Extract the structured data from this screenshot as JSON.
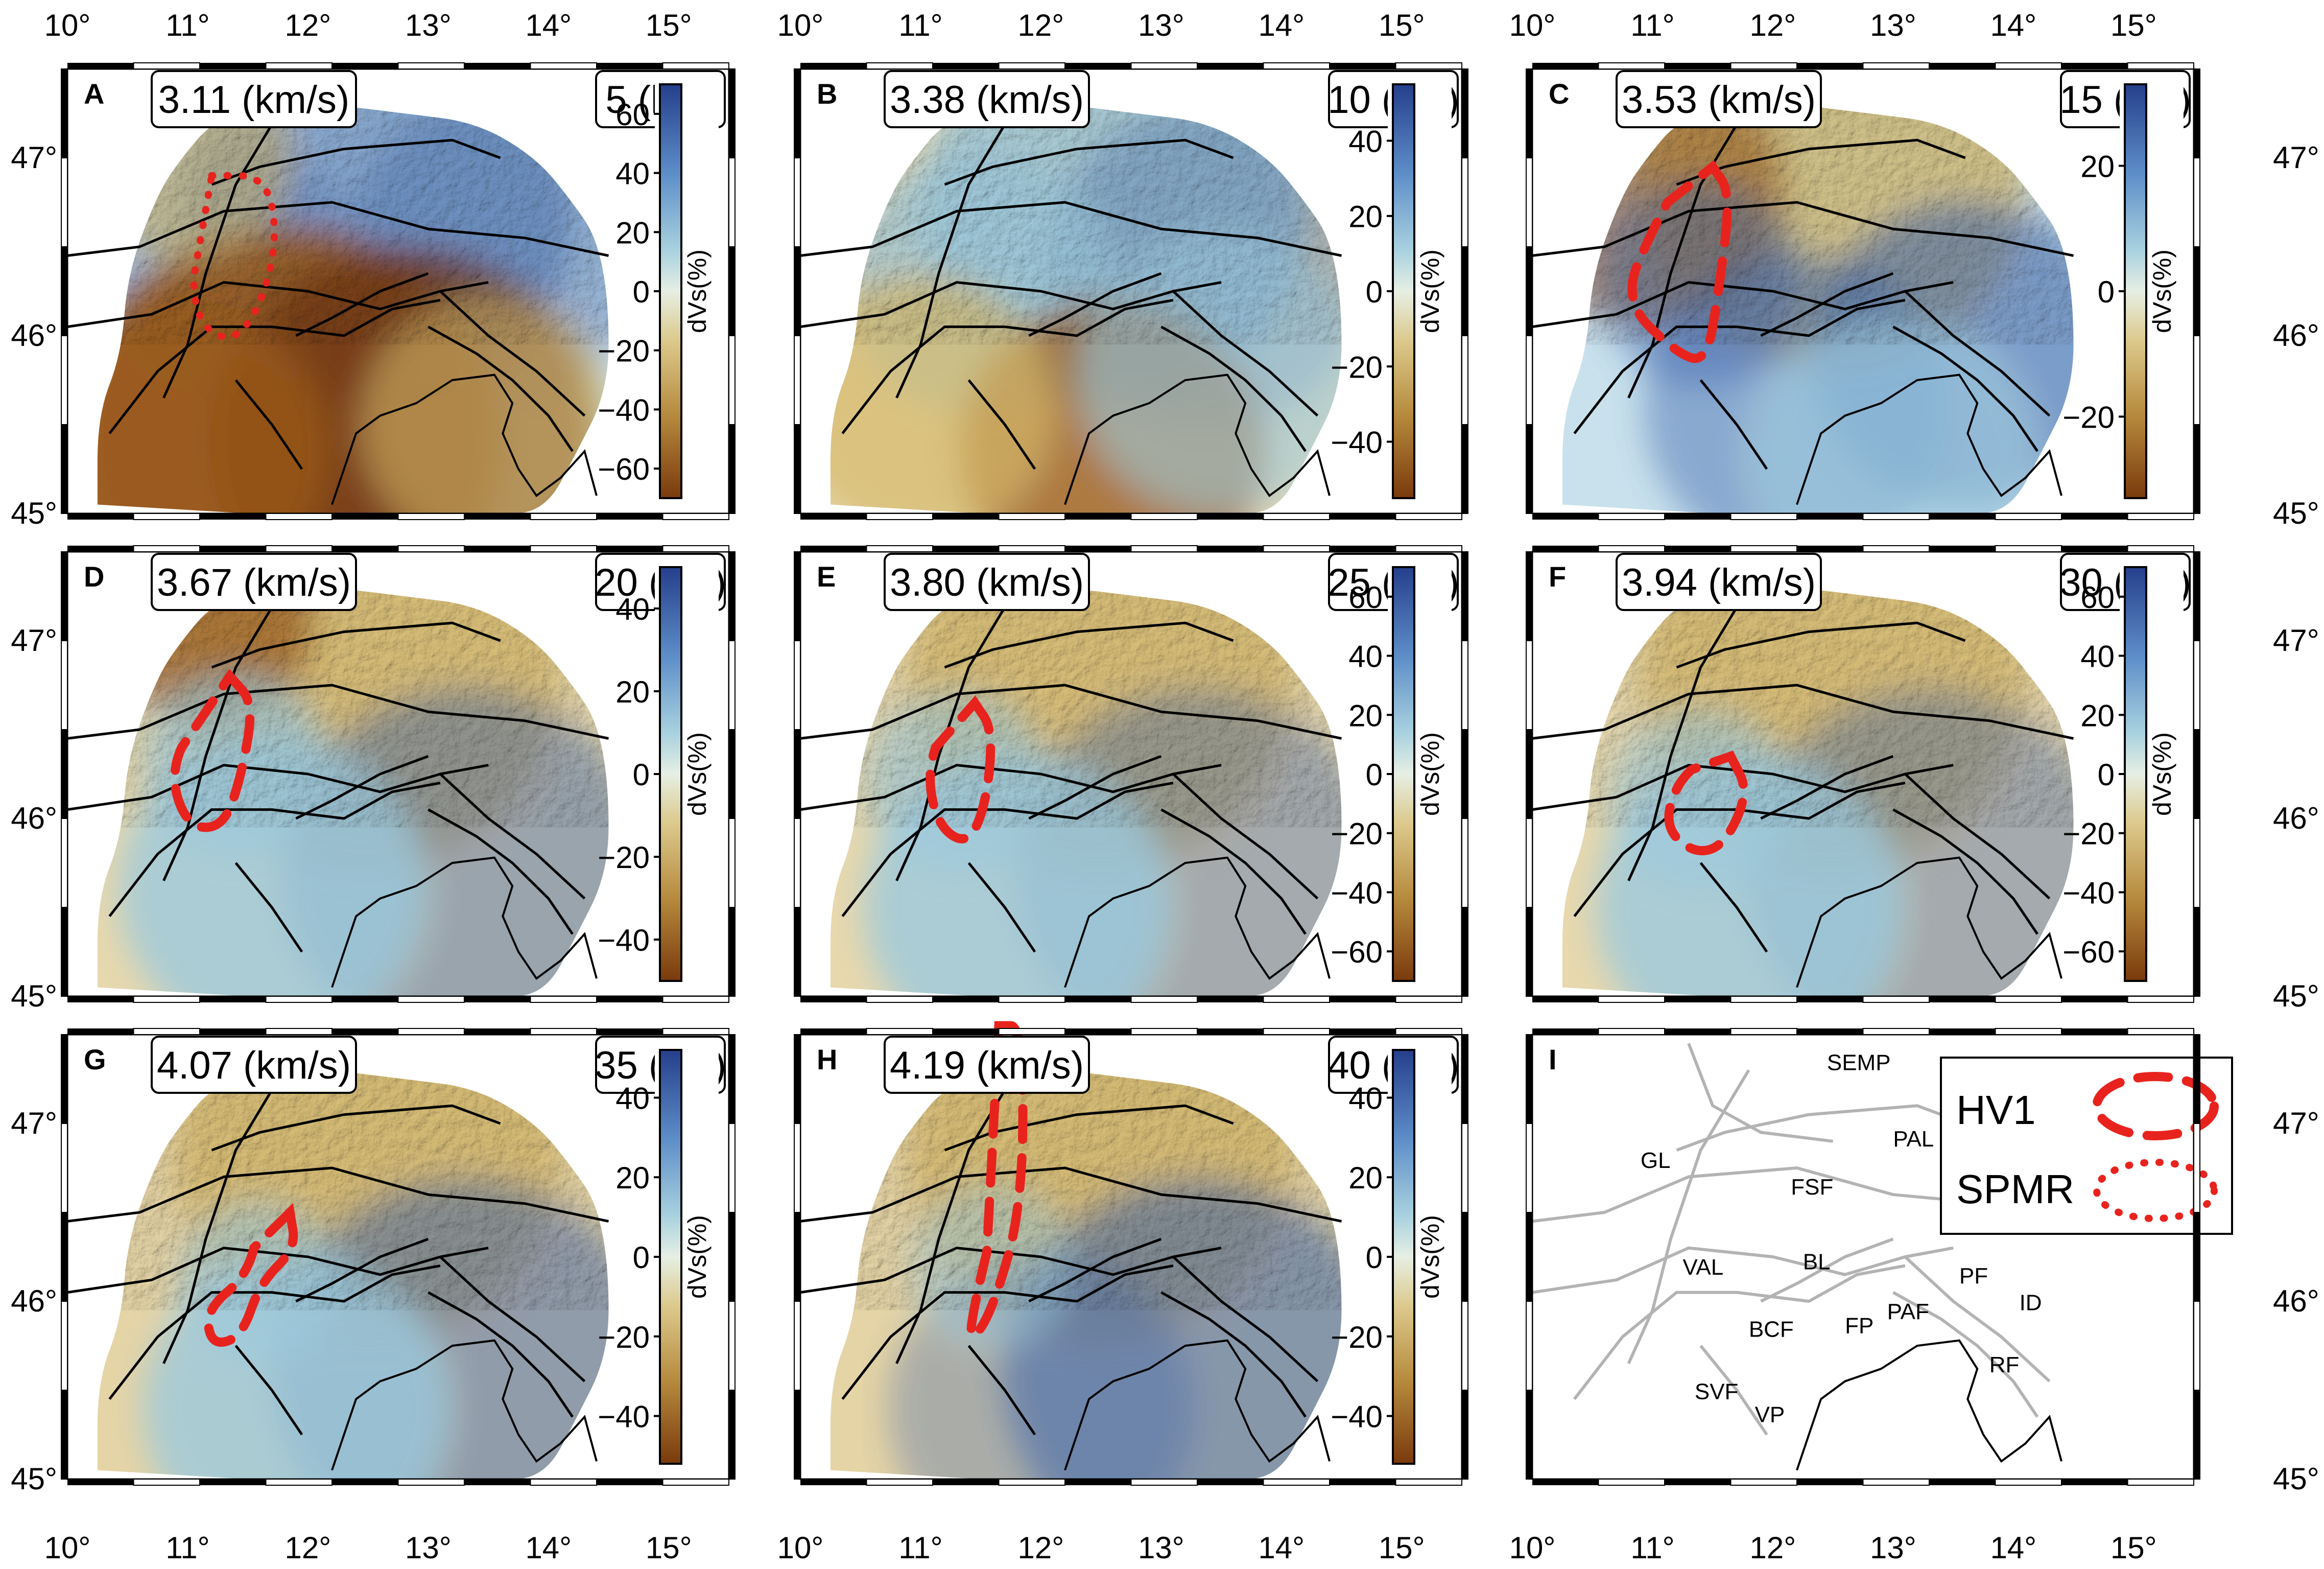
{
  "chart_data": [
    {
      "type": "heatmap",
      "panel": "A",
      "velocity": "3.11 (km/s)",
      "depth": "5 (km)",
      "colorbar": {
        "label": "dVs(%)",
        "ticks": [
          60,
          40,
          20,
          0,
          -20,
          -40,
          -60
        ],
        "range": [
          -70,
          70
        ]
      },
      "outline": "SPMR",
      "xlim": [
        10,
        15
      ],
      "ylim": [
        45,
        47.5
      ]
    },
    {
      "type": "heatmap",
      "panel": "B",
      "velocity": "3.38 (km/s)",
      "depth": "10 (km)",
      "colorbar": {
        "label": "dVs(%)",
        "ticks": [
          40,
          20,
          0,
          -20,
          -40
        ],
        "range": [
          -55,
          55
        ]
      },
      "outline": "",
      "xlim": [
        10,
        15
      ],
      "ylim": [
        45,
        47.5
      ]
    },
    {
      "type": "heatmap",
      "panel": "C",
      "velocity": "3.53 (km/s)",
      "depth": "15 (km)",
      "colorbar": {
        "label": "dVs(%)",
        "ticks": [
          20,
          0,
          -20
        ],
        "range": [
          -33,
          33
        ]
      },
      "outline": "HV1",
      "xlim": [
        10,
        15
      ],
      "ylim": [
        45,
        47.5
      ]
    },
    {
      "type": "heatmap",
      "panel": "D",
      "velocity": "3.67 (km/s)",
      "depth": "20 (km)",
      "colorbar": {
        "label": "dVs(%)",
        "ticks": [
          40,
          20,
          0,
          -20,
          -40
        ],
        "range": [
          -50,
          50
        ]
      },
      "outline": "HV1",
      "xlim": [
        10,
        15
      ],
      "ylim": [
        45,
        47.5
      ]
    },
    {
      "type": "heatmap",
      "panel": "E",
      "velocity": "3.80 (km/s)",
      "depth": "25 (km)",
      "colorbar": {
        "label": "dVs(%)",
        "ticks": [
          60,
          40,
          20,
          0,
          -20,
          -40,
          -60
        ],
        "range": [
          -70,
          70
        ]
      },
      "outline": "HV1",
      "xlim": [
        10,
        15
      ],
      "ylim": [
        45,
        47.5
      ]
    },
    {
      "type": "heatmap",
      "panel": "F",
      "velocity": "3.94 (km/s)",
      "depth": "30 (km)",
      "colorbar": {
        "label": "dVs(%)",
        "ticks": [
          60,
          40,
          20,
          0,
          -20,
          -40,
          -60
        ],
        "range": [
          -70,
          70
        ]
      },
      "outline": "HV1",
      "xlim": [
        10,
        15
      ],
      "ylim": [
        45,
        47.5
      ]
    },
    {
      "type": "heatmap",
      "panel": "G",
      "velocity": "4.07 (km/s)",
      "depth": "35 (km)",
      "colorbar": {
        "label": "dVs(%)",
        "ticks": [
          40,
          20,
          0,
          -20,
          -40
        ],
        "range": [
          -52,
          52
        ]
      },
      "outline": "HV1",
      "xlim": [
        10,
        15
      ],
      "ylim": [
        45,
        47.5
      ]
    },
    {
      "type": "heatmap",
      "panel": "H",
      "velocity": "4.19 (km/s)",
      "depth": "40 (km)",
      "colorbar": {
        "label": "dVs(%)",
        "ticks": [
          40,
          20,
          0,
          -20,
          -40
        ],
        "range": [
          -52,
          52
        ]
      },
      "outline": "HV1",
      "xlim": [
        10,
        15
      ],
      "ylim": [
        45,
        47.5
      ]
    }
  ],
  "map_panel": {
    "label": "I",
    "faults": [
      "SEMP",
      "PAL",
      "GL",
      "FSF",
      "VAL",
      "BL",
      "PF",
      "ID",
      "PAF",
      "FP",
      "BCF",
      "RF",
      "SVF",
      "VP"
    ],
    "legend": [
      {
        "name": "HV1",
        "style": "dashed"
      },
      {
        "name": "SPMR",
        "style": "dotted"
      }
    ]
  },
  "axes": {
    "lon_ticks": [
      "10°",
      "11°",
      "12°",
      "13°",
      "14°",
      "15°"
    ],
    "lat_ticks": [
      "47°",
      "46°",
      "45°"
    ]
  },
  "colors": {
    "outline": "#e8231e",
    "positive": "#2e4e9c",
    "neutral": "#c8e2e6",
    "negative": "#8b4a14",
    "fault": "#000000",
    "map_fault": "#b3b3b3"
  }
}
